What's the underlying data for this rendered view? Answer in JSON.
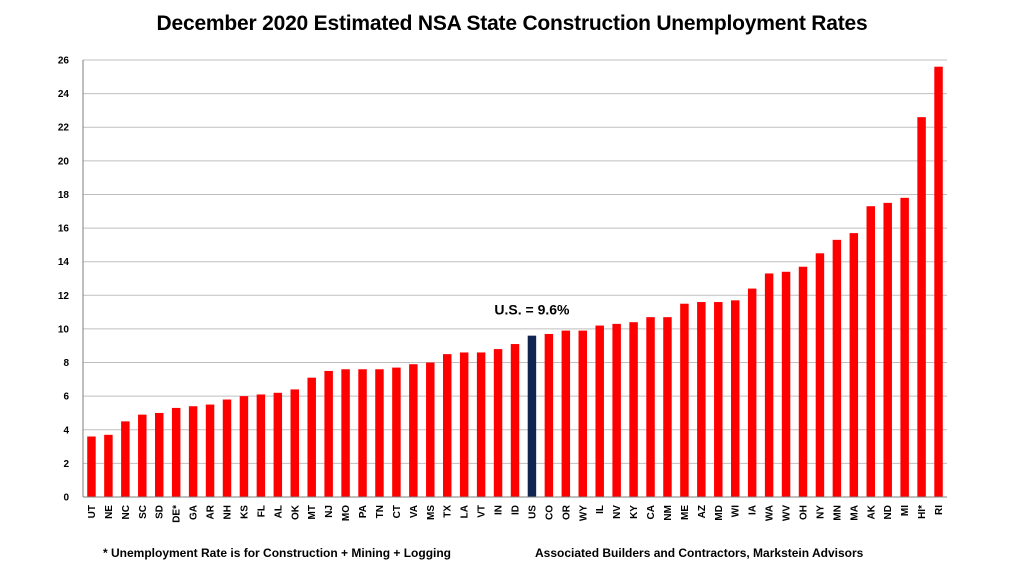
{
  "chart_data": {
    "type": "bar",
    "title": "December 2020 Estimated NSA State Construction Unemployment Rates",
    "xlabel": "",
    "ylabel": "",
    "ylim": [
      0,
      26
    ],
    "y_ticks": [
      0,
      2,
      4,
      6,
      8,
      10,
      12,
      14,
      16,
      18,
      20,
      22,
      24,
      26
    ],
    "grid": "horizontal",
    "categories": [
      "UT",
      "NE",
      "NC",
      "SC",
      "SD",
      "DE*",
      "GA",
      "AR",
      "NH",
      "KS",
      "FL",
      "AL",
      "OK",
      "MT",
      "NJ",
      "MO",
      "PA",
      "TN",
      "CT",
      "VA",
      "MS",
      "TX",
      "LA",
      "VT",
      "IN",
      "ID",
      "US",
      "CO",
      "OR",
      "WY",
      "IL",
      "NV",
      "KY",
      "CA",
      "NM",
      "ME",
      "AZ",
      "MD",
      "WI",
      "IA",
      "WA",
      "WV",
      "OH",
      "NY",
      "MN",
      "MA",
      "AK",
      "ND",
      "MI",
      "HI*",
      "RI"
    ],
    "values": [
      3.6,
      3.7,
      4.5,
      4.9,
      5.0,
      5.3,
      5.4,
      5.5,
      5.8,
      6.0,
      6.1,
      6.2,
      6.4,
      7.1,
      7.5,
      7.6,
      7.6,
      7.6,
      7.7,
      7.9,
      8.0,
      8.5,
      8.6,
      8.6,
      8.8,
      9.1,
      9.6,
      9.7,
      9.9,
      9.9,
      10.2,
      10.3,
      10.4,
      10.7,
      10.7,
      11.5,
      11.6,
      11.6,
      11.7,
      12.4,
      13.3,
      13.4,
      13.7,
      14.5,
      15.3,
      15.7,
      17.3,
      17.5,
      17.8,
      22.6,
      25.6
    ],
    "colors": {
      "default": "#ff0000",
      "highlight": "#0f2451",
      "highlight_category": "US"
    },
    "annotation": {
      "text": "U.S. = 9.6%",
      "category": "US"
    }
  },
  "footnotes": {
    "left": "* Unemployment Rate is for Construction + Mining + Logging",
    "right": "Associated Builders and Contractors, Markstein Advisors"
  }
}
